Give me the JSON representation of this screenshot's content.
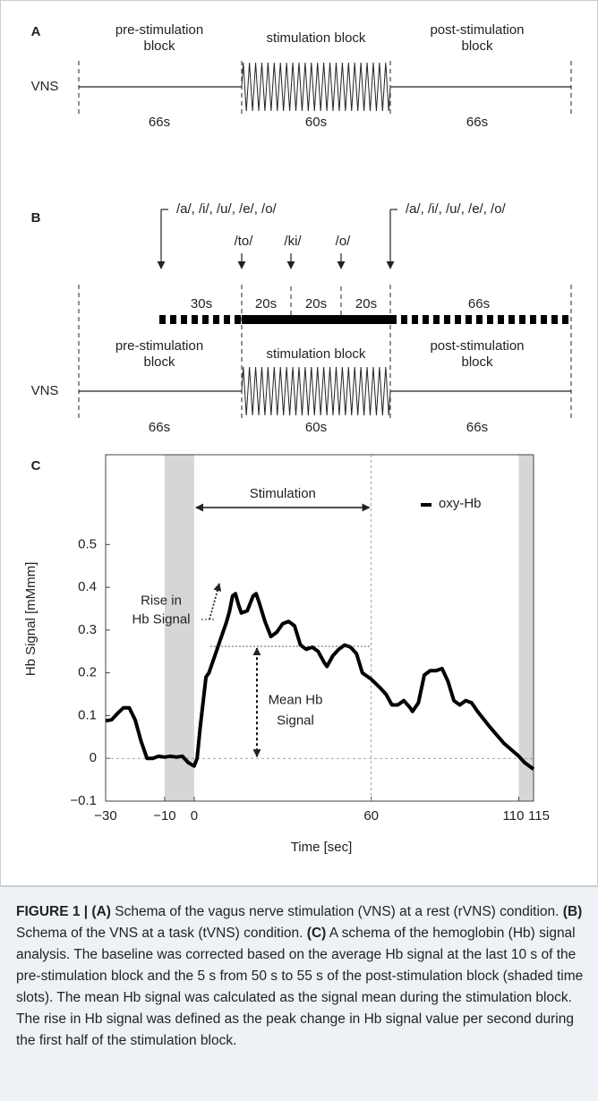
{
  "panel_a": {
    "label": "A",
    "row_label": "VNS",
    "blocks": [
      {
        "name": [
          "pre-stimulation",
          "block"
        ],
        "duration": "66s"
      },
      {
        "name": [
          "stimulation block"
        ],
        "duration": "60s"
      },
      {
        "name": [
          "post-stimulation",
          "block"
        ],
        "duration": "66s"
      }
    ]
  },
  "panel_b": {
    "label": "B",
    "row_label": "VNS",
    "cues": [
      "/a/, /i/, /u/, /e/, /o/",
      "/to/",
      "/ki/",
      "/o/",
      "/a/, /i/, /u/, /e/, /o/"
    ],
    "task_durations": [
      "30s",
      "20s",
      "20s",
      "20s",
      "66s"
    ],
    "blocks": [
      {
        "name": [
          "pre-stimulation",
          "block"
        ],
        "duration": "66s"
      },
      {
        "name": [
          "stimulation block"
        ],
        "duration": "60s"
      },
      {
        "name": [
          "post-stimulation",
          "block"
        ],
        "duration": "66s"
      }
    ]
  },
  "chart_data": {
    "type": "line",
    "panel_label": "C",
    "x_label": "Time [sec]",
    "y_label": "Hb Signal [mMmm]",
    "x": [
      -30,
      -28,
      -26,
      -24,
      -22,
      -20,
      -18,
      -16,
      -14,
      -12,
      -10,
      -8,
      -6,
      -4,
      -2,
      0,
      1,
      2,
      3,
      4,
      5,
      6,
      8,
      9,
      11,
      12,
      13,
      14,
      15,
      16,
      18,
      20,
      21,
      22,
      24,
      26,
      28,
      30,
      32,
      34,
      36,
      38,
      40,
      42,
      44,
      45,
      47,
      49,
      51,
      53,
      55,
      57,
      60,
      63,
      65,
      67,
      69,
      71,
      73,
      74,
      76,
      78,
      80,
      82,
      84,
      86,
      88,
      90,
      92,
      94,
      96,
      100,
      105,
      110,
      112,
      115
    ],
    "series": [
      {
        "name": "oxy-Hb",
        "color": "#000000",
        "values": [
          0.088,
          0.09,
          0.105,
          0.118,
          0.118,
          0.09,
          0.04,
          0.0,
          0.0,
          0.005,
          0.003,
          0.005,
          0.003,
          0.005,
          -0.01,
          -0.018,
          0.0,
          0.07,
          0.13,
          0.19,
          0.2,
          0.22,
          0.26,
          0.28,
          0.32,
          0.345,
          0.38,
          0.385,
          0.36,
          0.34,
          0.345,
          0.38,
          0.385,
          0.365,
          0.32,
          0.285,
          0.295,
          0.315,
          0.32,
          0.31,
          0.265,
          0.255,
          0.26,
          0.25,
          0.225,
          0.215,
          0.24,
          0.255,
          0.265,
          0.26,
          0.245,
          0.2,
          0.185,
          0.165,
          0.15,
          0.125,
          0.125,
          0.135,
          0.12,
          0.11,
          0.13,
          0.195,
          0.205,
          0.205,
          0.21,
          0.18,
          0.135,
          0.125,
          0.135,
          0.13,
          0.11,
          0.075,
          0.035,
          0.005,
          -0.01,
          -0.025
        ]
      }
    ],
    "xlim": [
      -30,
      115
    ],
    "ylim": [
      -0.1,
      0.71
    ],
    "xticks": [
      {
        "value": -30,
        "label": "−30"
      },
      {
        "value": -10,
        "label": "−10"
      },
      0,
      60,
      110,
      115
    ],
    "yticks": [
      {
        "value": -0.1,
        "label": "−0.1"
      },
      0,
      0.1,
      0.2,
      0.3,
      0.4,
      0.5
    ],
    "shaded": [
      [
        -10,
        0
      ],
      [
        110,
        115
      ]
    ],
    "annotations": {
      "stimulation_text": "Stimulation",
      "stimulation_range": [
        0,
        60
      ],
      "rise_text": [
        "Rise in",
        "Hb Signal"
      ],
      "mean_text": [
        "Mean Hb",
        "Signal"
      ],
      "mean_value": 0.262
    },
    "legend": "upper right"
  },
  "caption": {
    "runs": [
      {
        "text": "FIGURE 1 | (A)",
        "bold": true
      },
      {
        "text": " Schema of the vagus nerve stimulation (VNS) at a rest (rVNS) condition. ",
        "bold": false
      },
      {
        "text": "(B)",
        "bold": true
      },
      {
        "text": " Schema of the VNS at a task (tVNS) condition. ",
        "bold": false
      },
      {
        "text": "(C)",
        "bold": true
      },
      {
        "text": " A schema of the hemoglobin (Hb) signal analysis. The baseline was corrected based on the average Hb signal at the last 10 s of the pre-stimulation block and the 5 s from 50 s to 55 s of the post-stimulation block (shaded time slots). The mean Hb signal was calculated as the signal mean during the stimulation block. The rise in Hb signal was defined as the peak change in Hb signal value per second during the first half of the stimulation block.",
        "bold": false
      }
    ]
  }
}
